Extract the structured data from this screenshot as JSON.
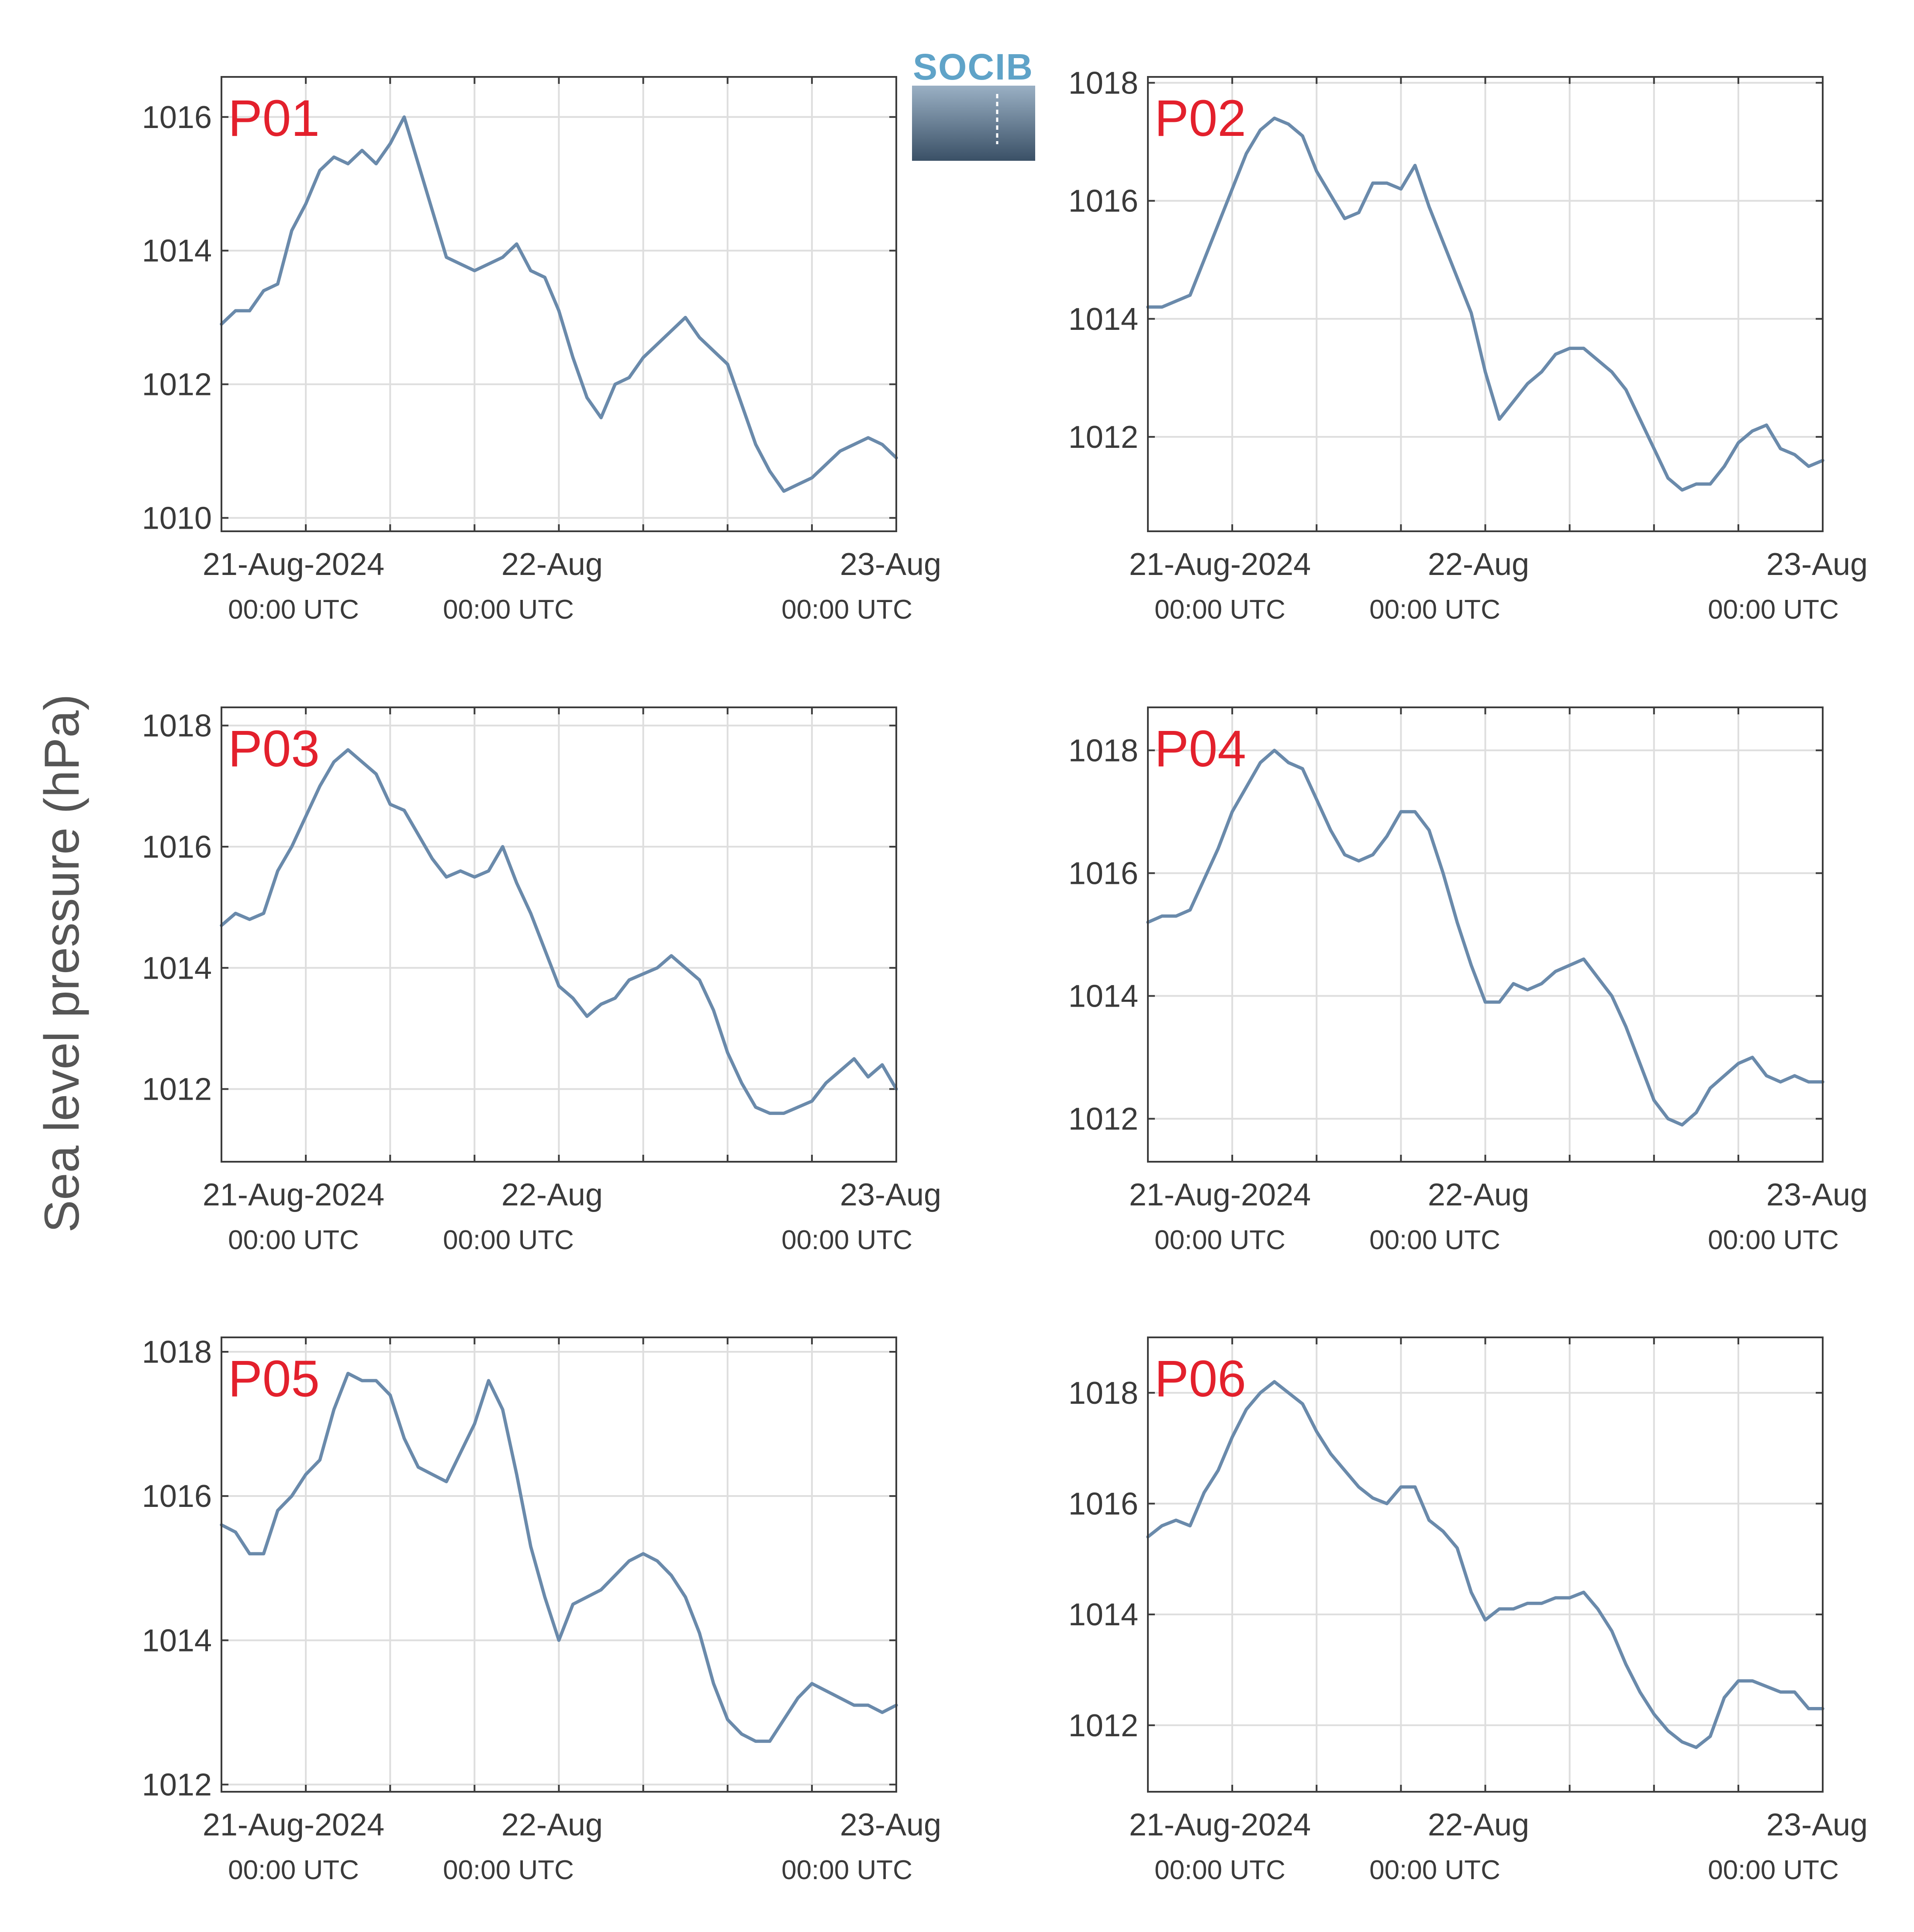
{
  "colors": {
    "series": "#6a8aab",
    "panel_tag": "#e3202c",
    "grid": "#dedede",
    "axis": "#3c3c3c",
    "logo_top": "#9ab0c4",
    "logo_bottom": "#3a5066"
  },
  "logo": {
    "text": "SOCIB"
  },
  "figure": {
    "ylabel": "Sea level pressure (hPa)"
  },
  "chart_data": [
    {
      "type": "line",
      "panel": "P01",
      "x_range": [
        "2024-08-21T00:00Z",
        "2024-08-23T00:00Z"
      ],
      "ylim": [
        1009.8,
        1016.6
      ],
      "yticks": [
        1010,
        1012,
        1014,
        1016
      ],
      "xticks": [
        "21-Aug-2024",
        "22-Aug",
        "23-Aug"
      ],
      "xtick_sub": [
        "00:00 UTC",
        "00:00 UTC",
        "00:00 UTC"
      ],
      "xgrid_hours": [
        6,
        12,
        18,
        24,
        30,
        36,
        42
      ],
      "grid": true,
      "x_hours": [
        0,
        1,
        2,
        3,
        4,
        5,
        6,
        7,
        8,
        9,
        10,
        11,
        12,
        13,
        14,
        15,
        16,
        17,
        18,
        19,
        20,
        21,
        22,
        23,
        24,
        25,
        26,
        27,
        28,
        29,
        30,
        31,
        32,
        33,
        34,
        35,
        36,
        37,
        38,
        39,
        40,
        41,
        42,
        43,
        44,
        45,
        46,
        47,
        48
      ],
      "values": [
        1012.9,
        1013.1,
        1013.1,
        1013.4,
        1013.5,
        1014.3,
        1014.7,
        1015.2,
        1015.4,
        1015.3,
        1015.5,
        1015.3,
        1015.6,
        1016.0,
        1015.3,
        1014.6,
        1013.9,
        1013.8,
        1013.7,
        1013.8,
        1013.9,
        1014.1,
        1013.7,
        1013.6,
        1013.1,
        1012.4,
        1011.8,
        1011.5,
        1012.0,
        1012.1,
        1012.4,
        1012.6,
        1012.8,
        1013.0,
        1012.7,
        1012.5,
        1012.3,
        1011.7,
        1011.1,
        1010.7,
        1010.4,
        1010.5,
        1010.6,
        1010.8,
        1011.0,
        1011.1,
        1011.2,
        1011.1,
        1010.9
      ]
    },
    {
      "type": "line",
      "panel": "P02",
      "x_range": [
        "2024-08-21T00:00Z",
        "2024-08-23T00:00Z"
      ],
      "ylim": [
        1010.4,
        1018.1
      ],
      "yticks": [
        1012,
        1014,
        1016,
        1018
      ],
      "xticks": [
        "21-Aug-2024",
        "22-Aug",
        "23-Aug"
      ],
      "xtick_sub": [
        "00:00 UTC",
        "00:00 UTC",
        "00:00 UTC"
      ],
      "xgrid_hours": [
        6,
        12,
        18,
        24,
        30,
        36,
        42
      ],
      "grid": true,
      "x_hours": [
        0,
        1,
        2,
        3,
        4,
        5,
        6,
        7,
        8,
        9,
        10,
        11,
        12,
        13,
        14,
        15,
        16,
        17,
        18,
        19,
        20,
        21,
        22,
        23,
        24,
        25,
        26,
        27,
        28,
        29,
        30,
        31,
        32,
        33,
        34,
        35,
        36,
        37,
        38,
        39,
        40,
        41,
        42,
        43,
        44,
        45,
        46,
        47,
        48
      ],
      "values": [
        1014.2,
        1014.2,
        1014.3,
        1014.4,
        1015.0,
        1015.6,
        1016.2,
        1016.8,
        1017.2,
        1017.4,
        1017.3,
        1017.1,
        1016.5,
        1016.1,
        1015.7,
        1015.8,
        1016.3,
        1016.3,
        1016.2,
        1016.6,
        1015.9,
        1015.3,
        1014.7,
        1014.1,
        1013.1,
        1012.3,
        1012.6,
        1012.9,
        1013.1,
        1013.4,
        1013.5,
        1013.5,
        1013.3,
        1013.1,
        1012.8,
        1012.3,
        1011.8,
        1011.3,
        1011.1,
        1011.2,
        1011.2,
        1011.5,
        1011.9,
        1012.1,
        1012.2,
        1011.8,
        1011.7,
        1011.5,
        1011.6
      ]
    },
    {
      "type": "line",
      "panel": "P03",
      "x_range": [
        "2024-08-21T00:00Z",
        "2024-08-23T00:00Z"
      ],
      "ylim": [
        1010.8,
        1018.3
      ],
      "yticks": [
        1012,
        1014,
        1016,
        1018
      ],
      "xticks": [
        "21-Aug-2024",
        "22-Aug",
        "23-Aug"
      ],
      "xtick_sub": [
        "00:00 UTC",
        "00:00 UTC",
        "00:00 UTC"
      ],
      "xgrid_hours": [
        6,
        12,
        18,
        24,
        30,
        36,
        42
      ],
      "grid": true,
      "x_hours": [
        0,
        1,
        2,
        3,
        4,
        5,
        6,
        7,
        8,
        9,
        10,
        11,
        12,
        13,
        14,
        15,
        16,
        17,
        18,
        19,
        20,
        21,
        22,
        23,
        24,
        25,
        26,
        27,
        28,
        29,
        30,
        31,
        32,
        33,
        34,
        35,
        36,
        37,
        38,
        39,
        40,
        41,
        42,
        43,
        44,
        45,
        46,
        47,
        48
      ],
      "values": [
        1014.7,
        1014.9,
        1014.8,
        1014.9,
        1015.6,
        1016.0,
        1016.5,
        1017.0,
        1017.4,
        1017.6,
        1017.4,
        1017.2,
        1016.7,
        1016.6,
        1016.2,
        1015.8,
        1015.5,
        1015.6,
        1015.5,
        1015.6,
        1016.0,
        1015.4,
        1014.9,
        1014.3,
        1013.7,
        1013.5,
        1013.2,
        1013.4,
        1013.5,
        1013.8,
        1013.9,
        1014.0,
        1014.2,
        1014.0,
        1013.8,
        1013.3,
        1012.6,
        1012.1,
        1011.7,
        1011.6,
        1011.6,
        1011.7,
        1011.8,
        1012.1,
        1012.3,
        1012.5,
        1012.2,
        1012.4,
        1012.0
      ]
    },
    {
      "type": "line",
      "panel": "P04",
      "x_range": [
        "2024-08-21T00:00Z",
        "2024-08-23T00:00Z"
      ],
      "ylim": [
        1011.3,
        1018.7
      ],
      "yticks": [
        1012,
        1014,
        1016,
        1018
      ],
      "xticks": [
        "21-Aug-2024",
        "22-Aug",
        "23-Aug"
      ],
      "xtick_sub": [
        "00:00 UTC",
        "00:00 UTC",
        "00:00 UTC"
      ],
      "xgrid_hours": [
        6,
        12,
        18,
        24,
        30,
        36,
        42
      ],
      "grid": true,
      "x_hours": [
        0,
        1,
        2,
        3,
        4,
        5,
        6,
        7,
        8,
        9,
        10,
        11,
        12,
        13,
        14,
        15,
        16,
        17,
        18,
        19,
        20,
        21,
        22,
        23,
        24,
        25,
        26,
        27,
        28,
        29,
        30,
        31,
        32,
        33,
        34,
        35,
        36,
        37,
        38,
        39,
        40,
        41,
        42,
        43,
        44,
        45,
        46,
        47,
        48
      ],
      "values": [
        1015.2,
        1015.3,
        1015.3,
        1015.4,
        1015.9,
        1016.4,
        1017.0,
        1017.4,
        1017.8,
        1018.0,
        1017.8,
        1017.7,
        1017.2,
        1016.7,
        1016.3,
        1016.2,
        1016.3,
        1016.6,
        1017.0,
        1017.0,
        1016.7,
        1016.0,
        1015.2,
        1014.5,
        1013.9,
        1013.9,
        1014.2,
        1014.1,
        1014.2,
        1014.4,
        1014.5,
        1014.6,
        1014.3,
        1014.0,
        1013.5,
        1012.9,
        1012.3,
        1012.0,
        1011.9,
        1012.1,
        1012.5,
        1012.7,
        1012.9,
        1013.0,
        1012.7,
        1012.6,
        1012.7,
        1012.6,
        1012.6
      ]
    },
    {
      "type": "line",
      "panel": "P05",
      "x_range": [
        "2024-08-21T00:00Z",
        "2024-08-23T00:00Z"
      ],
      "ylim": [
        1011.9,
        1018.2
      ],
      "yticks": [
        1012,
        1014,
        1016,
        1018
      ],
      "xticks": [
        "21-Aug-2024",
        "22-Aug",
        "23-Aug"
      ],
      "xtick_sub": [
        "00:00 UTC",
        "00:00 UTC",
        "00:00 UTC"
      ],
      "xgrid_hours": [
        6,
        12,
        18,
        24,
        30,
        36,
        42
      ],
      "grid": true,
      "x_hours": [
        0,
        1,
        2,
        3,
        4,
        5,
        6,
        7,
        8,
        9,
        10,
        11,
        12,
        13,
        14,
        15,
        16,
        17,
        18,
        19,
        20,
        21,
        22,
        23,
        24,
        25,
        26,
        27,
        28,
        29,
        30,
        31,
        32,
        33,
        34,
        35,
        36,
        37,
        38,
        39,
        40,
        41,
        42,
        43,
        44,
        45,
        46,
        47,
        48
      ],
      "values": [
        1015.6,
        1015.5,
        1015.2,
        1015.2,
        1015.8,
        1016.0,
        1016.3,
        1016.5,
        1017.2,
        1017.7,
        1017.6,
        1017.6,
        1017.4,
        1016.8,
        1016.4,
        1016.3,
        1016.2,
        1016.6,
        1017.0,
        1017.6,
        1017.2,
        1016.3,
        1015.3,
        1014.6,
        1014.0,
        1014.5,
        1014.6,
        1014.7,
        1014.9,
        1015.1,
        1015.2,
        1015.1,
        1014.9,
        1014.6,
        1014.1,
        1013.4,
        1012.9,
        1012.7,
        1012.6,
        1012.6,
        1012.9,
        1013.2,
        1013.4,
        1013.3,
        1013.2,
        1013.1,
        1013.1,
        1013.0,
        1013.1
      ]
    },
    {
      "type": "line",
      "panel": "P06",
      "x_range": [
        "2024-08-21T00:00Z",
        "2024-08-23T00:00Z"
      ],
      "ylim": [
        1010.8,
        1019.0
      ],
      "yticks": [
        1012,
        1014,
        1016,
        1018
      ],
      "xticks": [
        "21-Aug-2024",
        "22-Aug",
        "23-Aug"
      ],
      "xtick_sub": [
        "00:00 UTC",
        "00:00 UTC",
        "00:00 UTC"
      ],
      "xgrid_hours": [
        6,
        12,
        18,
        24,
        30,
        36,
        42
      ],
      "grid": true,
      "x_hours": [
        0,
        1,
        2,
        3,
        4,
        5,
        6,
        7,
        8,
        9,
        10,
        11,
        12,
        13,
        14,
        15,
        16,
        17,
        18,
        19,
        20,
        21,
        22,
        23,
        24,
        25,
        26,
        27,
        28,
        29,
        30,
        31,
        32,
        33,
        34,
        35,
        36,
        37,
        38,
        39,
        40,
        41,
        42,
        43,
        44,
        45,
        46,
        47,
        48
      ],
      "values": [
        1015.4,
        1015.6,
        1015.7,
        1015.6,
        1016.2,
        1016.6,
        1017.2,
        1017.7,
        1018.0,
        1018.2,
        1018.0,
        1017.8,
        1017.3,
        1016.9,
        1016.6,
        1016.3,
        1016.1,
        1016.0,
        1016.3,
        1016.3,
        1015.7,
        1015.5,
        1015.2,
        1014.4,
        1013.9,
        1014.1,
        1014.1,
        1014.2,
        1014.2,
        1014.3,
        1014.3,
        1014.4,
        1014.1,
        1013.7,
        1013.1,
        1012.6,
        1012.2,
        1011.9,
        1011.7,
        1011.6,
        1011.8,
        1012.5,
        1012.8,
        1012.8,
        1012.7,
        1012.6,
        1012.6,
        1012.3,
        1012.3
      ]
    }
  ]
}
